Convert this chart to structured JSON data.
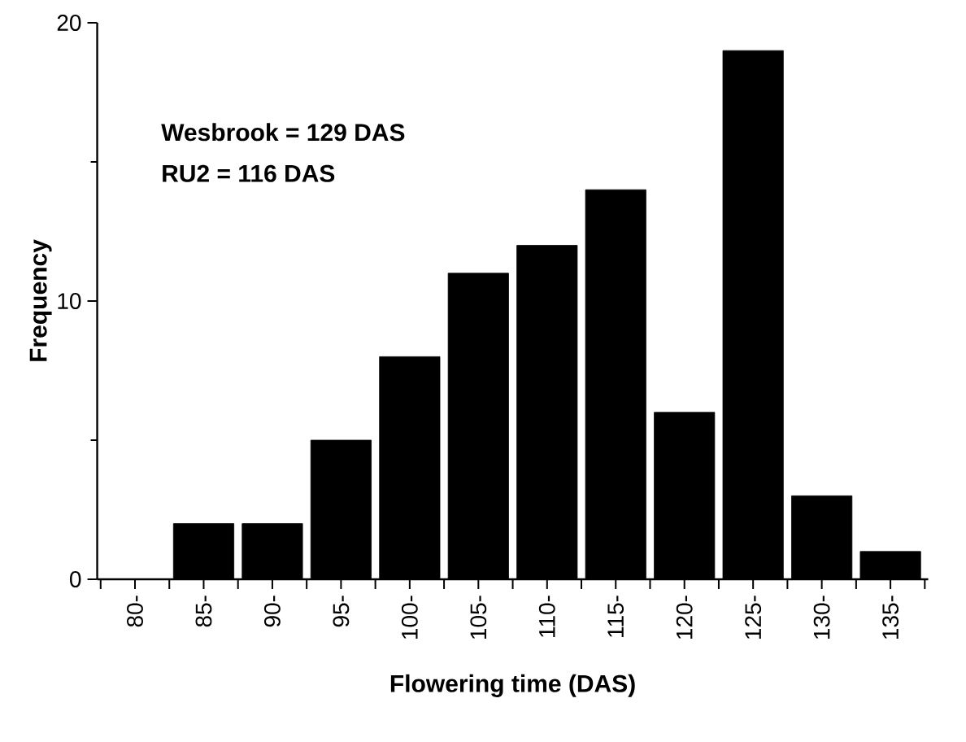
{
  "chart_data": {
    "type": "bar",
    "xlabel": "Flowering time (DAS)",
    "ylabel": "Frequency",
    "categories": [
      "80-",
      "85-",
      "90-",
      "95-",
      "100-",
      "105-",
      "110-",
      "115-",
      "120-",
      "125-",
      "130-",
      "135-"
    ],
    "values": [
      0,
      2,
      2,
      5,
      8,
      11,
      12,
      14,
      6,
      19,
      3,
      1
    ],
    "color": "#000000",
    "ylim": [
      0,
      20
    ],
    "yticks": [
      0,
      10,
      20
    ],
    "annotations": [
      "Wesbrook = 129 DAS",
      "RU2 = 116 DAS"
    ]
  }
}
